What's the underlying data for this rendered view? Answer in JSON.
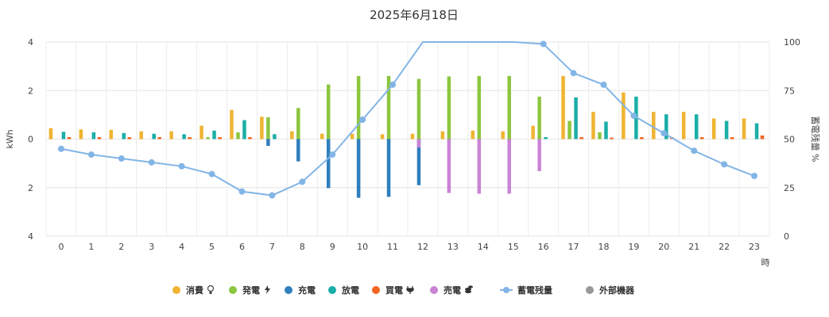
{
  "chart_data": {
    "type": "bar",
    "title": "2025年6月18日",
    "xlabel": "時",
    "ylabel_left": "kWh",
    "ylabel_right": "蓄電残量 %",
    "ylim_left": [
      -4,
      4
    ],
    "ylim_right": [
      0,
      100
    ],
    "y_ticks_left": [
      "4",
      "2",
      "0",
      "2",
      "4"
    ],
    "y_ticks_right": [
      "100",
      "75",
      "50",
      "25",
      "0"
    ],
    "categories": [
      "0",
      "1",
      "2",
      "3",
      "4",
      "5",
      "6",
      "7",
      "8",
      "9",
      "10",
      "11",
      "12",
      "13",
      "14",
      "15",
      "16",
      "17",
      "18",
      "19",
      "20",
      "21",
      "22",
      "23"
    ],
    "grid": true,
    "legend_position": "bottom",
    "series": [
      {
        "name": "消費",
        "icon": "bulb-icon",
        "color": "#f0b432",
        "kind": "bar",
        "values": [
          0.45,
          0.4,
          0.38,
          0.32,
          0.32,
          0.55,
          1.2,
          0.92,
          0.32,
          0.22,
          0.22,
          0.2,
          0.22,
          0.32,
          0.35,
          0.32,
          0.55,
          2.6,
          1.12,
          1.92,
          1.12,
          1.12,
          0.85,
          0.85
        ]
      },
      {
        "name": "発電",
        "icon": "bolt-icon",
        "color": "#8cc63f",
        "kind": "bar",
        "values": [
          0,
          0,
          0,
          0,
          0,
          0.08,
          0.28,
          0.9,
          1.28,
          2.25,
          2.6,
          2.6,
          2.48,
          2.58,
          2.6,
          2.6,
          1.75,
          0.75,
          0.28,
          0,
          0,
          0,
          0,
          0
        ]
      },
      {
        "name": "充電",
        "icon": "",
        "color": "#2f7fbd",
        "kind": "bar",
        "values": [
          0,
          0,
          0,
          0,
          0,
          0,
          0,
          -0.28,
          -0.92,
          -2.02,
          -2.42,
          -2.38,
          -1.9,
          0,
          0,
          0,
          0,
          0,
          0,
          0,
          0,
          0,
          0,
          0
        ]
      },
      {
        "name": "放電",
        "icon": "",
        "color": "#1aaea7",
        "kind": "bar",
        "values": [
          0.3,
          0.28,
          0.25,
          0.22,
          0.2,
          0.35,
          0.78,
          0.2,
          0,
          0,
          0,
          0,
          0,
          0,
          0,
          0,
          0.08,
          1.72,
          0.72,
          1.75,
          1.02,
          1.02,
          0.75,
          0.65
        ]
      },
      {
        "name": "買電",
        "icon": "plug-icon",
        "color": "#f26522",
        "kind": "bar",
        "values": [
          0.08,
          0.08,
          0.08,
          0.08,
          0.08,
          0.08,
          0.08,
          0,
          0,
          0,
          0,
          0,
          0,
          0,
          0,
          0,
          0,
          0.08,
          0.06,
          0.08,
          0.08,
          0.08,
          0.08,
          0.15
        ]
      },
      {
        "name": "売電",
        "icon": "coins-icon",
        "color": "#c984d4",
        "kind": "bar",
        "values": [
          0,
          0,
          0,
          0,
          0,
          0,
          0,
          0,
          0,
          0,
          0,
          0,
          -0.35,
          -2.22,
          -2.25,
          -2.25,
          -1.32,
          0,
          0,
          0,
          0,
          0,
          0,
          0
        ]
      },
      {
        "name": "蓄電残量",
        "icon": "",
        "color": "#82b5e6",
        "kind": "line",
        "values": [
          45,
          42,
          40,
          38,
          36,
          32,
          23,
          21,
          28,
          42,
          60,
          78,
          101,
          101,
          101,
          101,
          99,
          84,
          78,
          62,
          53,
          44,
          37,
          31
        ]
      },
      {
        "name": "外部機器",
        "icon": "",
        "color": "#999999",
        "kind": "bar",
        "values": [
          0,
          0,
          0,
          0,
          0,
          0,
          0,
          0,
          0,
          0,
          0,
          0,
          0,
          0,
          0,
          0,
          0,
          0,
          0,
          0,
          0,
          0,
          0,
          0
        ]
      }
    ]
  }
}
